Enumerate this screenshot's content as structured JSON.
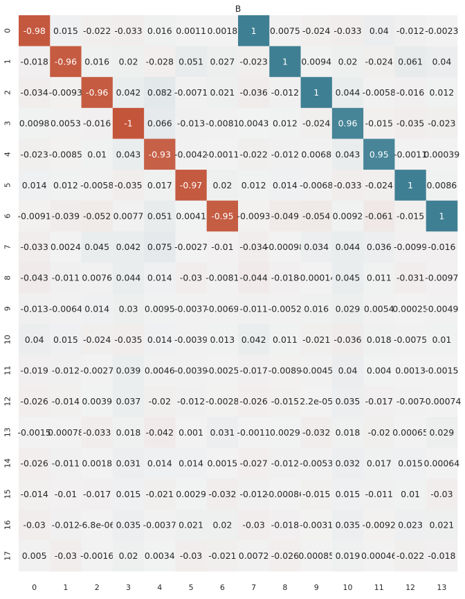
{
  "chart_data": {
    "type": "heatmap",
    "title": "B",
    "xlabel": "",
    "ylabel": "",
    "x_categories": [
      "0",
      "1",
      "2",
      "3",
      "4",
      "5",
      "6",
      "7",
      "8",
      "9",
      "10",
      "11",
      "12",
      "13"
    ],
    "y_categories": [
      "0",
      "1",
      "2",
      "3",
      "4",
      "5",
      "6",
      "7",
      "8",
      "9",
      "10",
      "11",
      "12",
      "13",
      "14",
      "15",
      "16",
      "17"
    ],
    "value_range": [
      -1,
      1
    ],
    "colormap": {
      "negative": "#c3553a",
      "center": "#f2f2f2",
      "positive": "#3f7f93"
    },
    "grid": false,
    "legend": "none",
    "values": [
      [
        -0.98,
        0.015,
        -0.022,
        -0.033,
        0.016,
        0.0011,
        0.0018,
        1,
        0.0075,
        -0.024,
        -0.033,
        0.04,
        -0.012,
        -0.0023
      ],
      [
        -0.018,
        -0.96,
        0.016,
        0.02,
        -0.028,
        0.051,
        0.027,
        -0.023,
        1,
        0.0094,
        0.02,
        -0.024,
        0.061,
        0.04
      ],
      [
        -0.034,
        -0.0093,
        -0.96,
        0.042,
        0.082,
        -0.0071,
        0.021,
        -0.036,
        -0.012,
        1,
        0.044,
        -0.0058,
        -0.016,
        0.012
      ],
      [
        0.0098,
        0.0053,
        -0.016,
        -1,
        0.066,
        -0.013,
        -0.0081,
        0.0043,
        0.012,
        -0.024,
        0.96,
        -0.015,
        -0.035,
        -0.023
      ],
      [
        -0.023,
        -0.0085,
        0.01,
        0.043,
        -0.93,
        -0.0042,
        -0.0011,
        -0.022,
        -0.012,
        0.0068,
        0.043,
        0.95,
        -0.0011,
        0.00039
      ],
      [
        0.014,
        0.012,
        -0.0058,
        -0.035,
        0.017,
        -0.97,
        0.02,
        0.012,
        0.014,
        -0.0068,
        -0.033,
        -0.024,
        1,
        0.0086
      ],
      [
        -0.0091,
        -0.039,
        -0.052,
        0.0077,
        0.051,
        0.0041,
        -0.95,
        -0.0093,
        -0.049,
        -0.054,
        0.0092,
        -0.061,
        -0.015,
        1
      ],
      [
        -0.033,
        0.0024,
        0.045,
        0.042,
        0.075,
        -0.0027,
        -0.01,
        -0.034,
        -0.00098,
        0.034,
        0.044,
        0.036,
        -0.0099,
        -0.016
      ],
      [
        -0.043,
        -0.011,
        0.0076,
        0.044,
        0.014,
        -0.03,
        -0.0081,
        -0.044,
        -0.018,
        -0.00014,
        0.045,
        0.011,
        -0.031,
        -0.0097
      ],
      [
        -0.013,
        -0.0064,
        0.014,
        0.03,
        0.0095,
        -0.0037,
        -0.0069,
        -0.011,
        -0.0052,
        0.016,
        0.029,
        0.0054,
        0.00025,
        -0.0049
      ],
      [
        0.04,
        0.015,
        -0.024,
        -0.035,
        0.014,
        -0.0039,
        0.013,
        0.042,
        0.011,
        -0.021,
        -0.036,
        0.018,
        -0.0075,
        0.01
      ],
      [
        -0.019,
        -0.012,
        -0.0027,
        0.039,
        0.0046,
        -0.0039,
        -0.0025,
        -0.017,
        -0.0089,
        -0.0045,
        0.04,
        0.004,
        0.0013,
        -0.0015
      ],
      [
        -0.026,
        -0.014,
        0.0039,
        0.037,
        -0.02,
        -0.012,
        -0.0028,
        -0.026,
        -0.015,
        2.2e-05,
        0.035,
        -0.017,
        -0.007,
        -0.00074
      ],
      [
        -0.0015,
        0.00078,
        -0.033,
        0.018,
        -0.042,
        0.001,
        0.031,
        -0.0011,
        0.0029,
        -0.032,
        0.018,
        -0.02,
        0.00065,
        0.029
      ],
      [
        -0.026,
        -0.011,
        0.0018,
        0.031,
        0.014,
        0.014,
        0.0015,
        -0.027,
        -0.012,
        -0.0053,
        0.032,
        0.017,
        0.015,
        0.00064
      ],
      [
        -0.014,
        -0.01,
        -0.017,
        0.015,
        -0.021,
        0.0029,
        -0.032,
        -0.012,
        -0.00086,
        -0.015,
        0.015,
        -0.011,
        0.01,
        -0.03
      ],
      [
        -0.03,
        -0.012,
        -6.8e-06,
        0.035,
        -0.0037,
        0.021,
        0.02,
        -0.03,
        -0.018,
        -0.0031,
        0.035,
        -0.0092,
        0.023,
        0.021
      ],
      [
        0.005,
        -0.03,
        -0.0016,
        0.02,
        0.0034,
        -0.03,
        -0.021,
        0.0072,
        -0.026,
        0.00085,
        0.019,
        0.00046,
        -0.022,
        -0.018
      ]
    ],
    "labels": [
      [
        "-0.98",
        "0.015",
        "-0.022",
        "-0.033",
        "0.016",
        "0.0011",
        "0.0018",
        "1",
        "0.0075",
        "-0.024",
        "-0.033",
        "0.04",
        "-0.012",
        "-0.0023"
      ],
      [
        "-0.018",
        "-0.96",
        "0.016",
        "0.02",
        "-0.028",
        "0.051",
        "0.027",
        "-0.023",
        "1",
        "0.0094",
        "0.02",
        "-0.024",
        "0.061",
        "0.04"
      ],
      [
        "-0.034",
        "-0.0093",
        "-0.96",
        "0.042",
        "0.082",
        "-0.0071",
        "0.021",
        "-0.036",
        "-0.012",
        "1",
        "0.044",
        "-0.0058",
        "-0.016",
        "0.012"
      ],
      [
        "0.0098",
        "0.0053",
        "-0.016",
        "-1",
        "0.066",
        "-0.013",
        "-0.0081",
        "0.0043",
        "0.012",
        "-0.024",
        "0.96",
        "-0.015",
        "-0.035",
        "-0.023"
      ],
      [
        "-0.023",
        "-0.0085",
        "0.01",
        "0.043",
        "-0.93",
        "-0.0042",
        "-0.0011",
        "-0.022",
        "-0.012",
        "0.0068",
        "0.043",
        "0.95",
        "-0.0011",
        "0.00039"
      ],
      [
        "0.014",
        "0.012",
        "-0.0058",
        "-0.035",
        "0.017",
        "-0.97",
        "0.02",
        "0.012",
        "0.014",
        "-0.0068",
        "-0.033",
        "-0.024",
        "1",
        "0.0086"
      ],
      [
        "-0.0091",
        "-0.039",
        "-0.052",
        "0.0077",
        "0.051",
        "0.0041",
        "-0.95",
        "-0.0093",
        "-0.049",
        "-0.054",
        "0.0092",
        "-0.061",
        "-0.015",
        "1"
      ],
      [
        "-0.033",
        "0.0024",
        "0.045",
        "0.042",
        "0.075",
        "-0.0027",
        "-0.01",
        "-0.034",
        "-0.00098",
        "0.034",
        "0.044",
        "0.036",
        "-0.0099",
        "-0.016"
      ],
      [
        "-0.043",
        "-0.011",
        "0.0076",
        "0.044",
        "0.014",
        "-0.03",
        "-0.0081",
        "-0.044",
        "-0.018",
        "-0.00014",
        "0.045",
        "0.011",
        "-0.031",
        "-0.0097"
      ],
      [
        "-0.013",
        "-0.0064",
        "0.014",
        "0.03",
        "0.0095",
        "-0.0037",
        "-0.0069",
        "-0.011",
        "-0.0052",
        "0.016",
        "0.029",
        "0.0054",
        "0.00025",
        "-0.0049"
      ],
      [
        "0.04",
        "0.015",
        "-0.024",
        "-0.035",
        "0.014",
        "-0.0039",
        "0.013",
        "0.042",
        "0.011",
        "-0.021",
        "-0.036",
        "0.018",
        "-0.0075",
        "0.01"
      ],
      [
        "-0.019",
        "-0.012",
        "-0.0027",
        "0.039",
        "0.0046",
        "-0.0039",
        "-0.0025",
        "-0.017",
        "-0.0089",
        "-0.0045",
        "0.04",
        "0.004",
        "0.0013",
        "-0.0015"
      ],
      [
        "-0.026",
        "-0.014",
        "0.0039",
        "0.037",
        "-0.02",
        "-0.012",
        "-0.0028",
        "-0.026",
        "-0.015",
        "2.2e-05",
        "0.035",
        "-0.017",
        "-0.007",
        "-0.00074"
      ],
      [
        "-0.0015",
        "0.00078",
        "-0.033",
        "0.018",
        "-0.042",
        "0.001",
        "0.031",
        "-0.0011",
        "0.0029",
        "-0.032",
        "0.018",
        "-0.02",
        "0.00065",
        "0.029"
      ],
      [
        "-0.026",
        "-0.011",
        "0.0018",
        "0.031",
        "0.014",
        "0.014",
        "0.0015",
        "-0.027",
        "-0.012",
        "-0.0053",
        "0.032",
        "0.017",
        "0.015",
        "0.00064"
      ],
      [
        "-0.014",
        "-0.01",
        "-0.017",
        "0.015",
        "-0.021",
        "0.0029",
        "-0.032",
        "-0.012",
        "-0.00086",
        "-0.015",
        "0.015",
        "-0.011",
        "0.01",
        "-0.03"
      ],
      [
        "-0.03",
        "-0.012",
        "-6.8e-06",
        "0.035",
        "-0.0037",
        "0.021",
        "0.02",
        "-0.03",
        "-0.018",
        "-0.0031",
        "0.035",
        "-0.0092",
        "0.023",
        "0.021"
      ],
      [
        "0.005",
        "-0.03",
        "-0.0016",
        "0.02",
        "0.0034",
        "-0.03",
        "-0.021",
        "0.0072",
        "-0.026",
        "0.00085",
        "0.019",
        "0.00046",
        "-0.022",
        "-0.018"
      ]
    ]
  }
}
